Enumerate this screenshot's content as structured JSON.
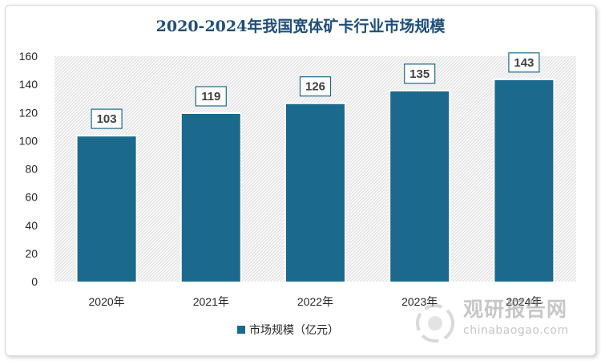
{
  "chart_data": {
    "type": "bar",
    "title": "2020-2024年我国宽体矿卡行业市场规模",
    "categories": [
      "2020年",
      "2021年",
      "2022年",
      "2023年",
      "2024年"
    ],
    "series": [
      {
        "name": "市场规模（亿元）",
        "values": [
          103,
          119,
          126,
          135,
          143
        ]
      }
    ],
    "ylim": [
      0,
      160
    ],
    "yticks": [
      0,
      20,
      40,
      60,
      80,
      100,
      120,
      140,
      160
    ],
    "grid": false,
    "legend_position": "bottom",
    "bar_color": "#1b6a8d",
    "plot_background": "hatched light gray"
  },
  "watermark": {
    "cn_text": "观研报告网",
    "en_text": "chinabaogao.com"
  }
}
